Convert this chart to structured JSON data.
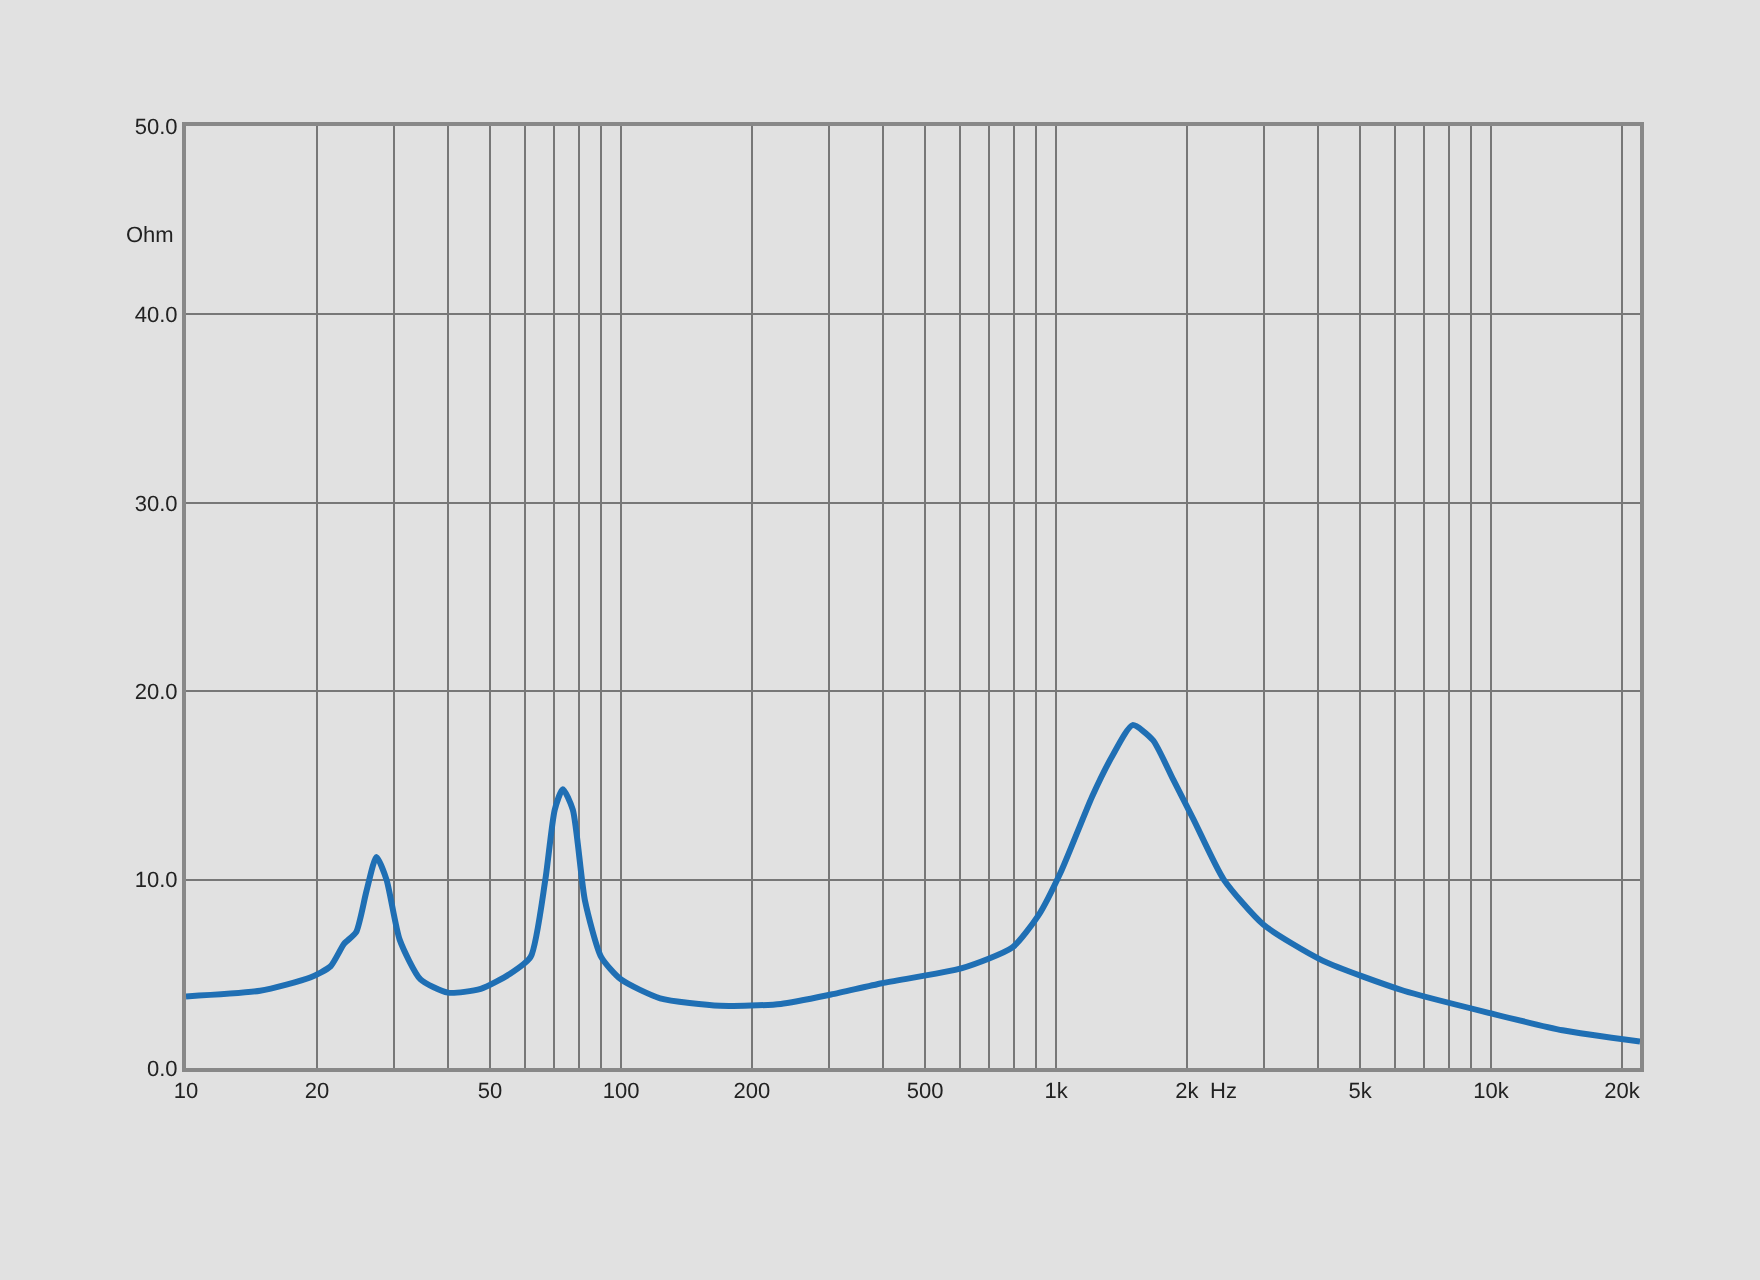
{
  "chart_data": {
    "type": "line",
    "xlabel": "Hz",
    "ylabel": "Ohm",
    "log": "x",
    "grid": true,
    "x": [
      10,
      14.8,
      19.3,
      21.5,
      23.1,
      24.6,
      26,
      27.4,
      28.9,
      31,
      34.6,
      40,
      47.6,
      55.6,
      62,
      67,
      70.4,
      73.5,
      77.5,
      82.6,
      90,
      100,
      123,
      169,
      233,
      304,
      398,
      608,
      794,
      911,
      1030,
      1210,
      1350,
      1500,
      1670,
      1860,
      2070,
      2430,
      3000,
      4100,
      6300,
      10000,
      14600,
      22000
    ],
    "series": [
      {
        "color": "#1f6fb4",
        "values": [
          3.8,
          4.1,
          4.8,
          5.4,
          6.6,
          7.2,
          9.4,
          11.2,
          10.0,
          6.8,
          4.7,
          4.0,
          4.2,
          5.0,
          5.9,
          10.0,
          13.7,
          14.8,
          13.7,
          8.9,
          5.9,
          4.7,
          3.7,
          3.3,
          3.4,
          3.9,
          4.5,
          5.3,
          6.4,
          8.1,
          10.5,
          14.4,
          16.6,
          18.2,
          17.4,
          15.3,
          13.2,
          10.0,
          7.6,
          5.7,
          4.1,
          2.9,
          2.0,
          1.4
        ]
      }
    ],
    "xlim": [
      10,
      22000
    ],
    "xticks": [
      10,
      20,
      {
        "value": 30,
        "label": null
      },
      {
        "value": 40,
        "label": null
      },
      50,
      {
        "value": 60,
        "label": null
      },
      {
        "value": 70,
        "label": null
      },
      {
        "value": 80,
        "label": null
      },
      {
        "value": 90,
        "label": null
      },
      100,
      200,
      {
        "value": 300,
        "label": null
      },
      {
        "value": 400,
        "label": null
      },
      500,
      {
        "value": 600,
        "label": null
      },
      {
        "value": 700,
        "label": null
      },
      {
        "value": 800,
        "label": null
      },
      {
        "value": 900,
        "label": null
      },
      {
        "value": 1000,
        "label": "1k"
      },
      {
        "value": 2000,
        "label": "2k"
      },
      {
        "value": 3000,
        "label": null
      },
      {
        "value": 4000,
        "label": null
      },
      {
        "value": 5000,
        "label": "5k"
      },
      {
        "value": 6000,
        "label": null
      },
      {
        "value": 7000,
        "label": null
      },
      {
        "value": 8000,
        "label": null
      },
      {
        "value": 9000,
        "label": null
      },
      {
        "value": 10000,
        "label": "10k"
      },
      {
        "value": 20000,
        "label": "20k"
      }
    ],
    "ylim": [
      0,
      50
    ],
    "yticks": [
      {
        "value": 0,
        "label": "0.0"
      },
      {
        "value": 10,
        "label": "10.0"
      },
      {
        "value": 20,
        "label": "20.0"
      },
      {
        "value": 30,
        "label": "30.0"
      },
      {
        "value": 40,
        "label": "40.0"
      },
      {
        "value": 50,
        "label": "50.0"
      }
    ]
  }
}
